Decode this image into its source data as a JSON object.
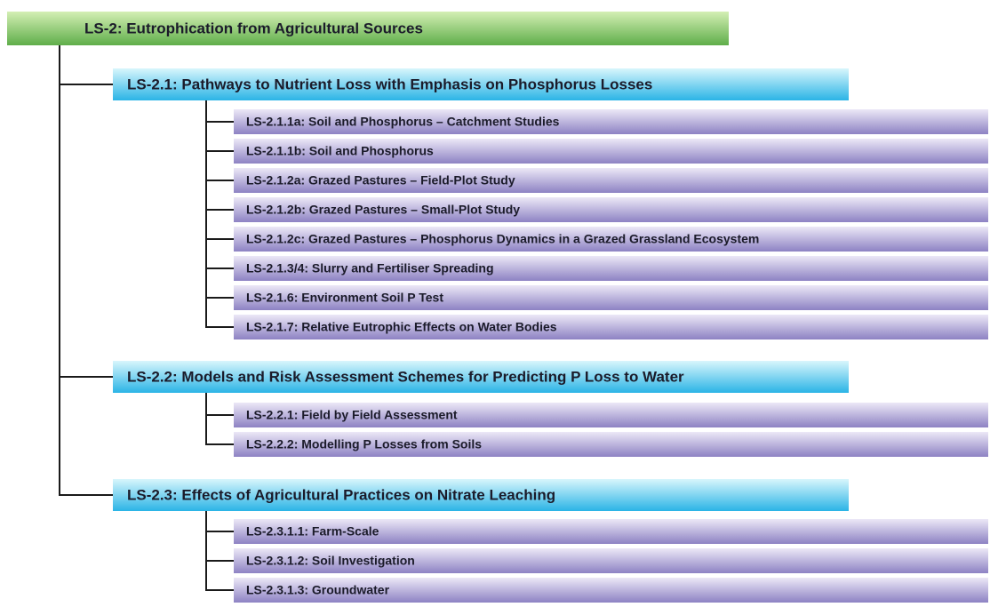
{
  "root": {
    "label": "LS-2: Eutrophication from Agricultural Sources"
  },
  "groups": [
    {
      "label": "LS-2.1: Pathways to Nutrient Loss with Emphasis on Phosphorus Losses",
      "items": [
        "LS-2.1.1a: Soil and Phosphorus – Catchment Studies",
        "LS-2.1.1b: Soil and Phosphorus",
        "LS-2.1.2a: Grazed Pastures – Field-Plot Study",
        "LS-2.1.2b: Grazed Pastures – Small-Plot Study",
        "LS-2.1.2c: Grazed Pastures – Phosphorus Dynamics in a Grazed Grassland Ecosystem",
        "LS-2.1.3/4: Slurry and Fertiliser Spreading",
        "LS-2.1.6: Environment Soil P Test",
        "LS-2.1.7: Relative Eutrophic Effects on Water Bodies"
      ]
    },
    {
      "label": "LS-2.2: Models and Risk Assessment Schemes for Predicting P Loss to Water",
      "items": [
        "LS-2.2.1: Field by Field Assessment",
        "LS-2.2.2: Modelling P Losses from Soils"
      ]
    },
    {
      "label": "LS-2.3: Effects of Agricultural Practices on Nitrate Leaching",
      "items": [
        "LS-2.3.1.1: Farm-Scale",
        "LS-2.3.1.2: Soil Investigation",
        "LS-2.3.1.3: Groundwater"
      ]
    }
  ]
}
